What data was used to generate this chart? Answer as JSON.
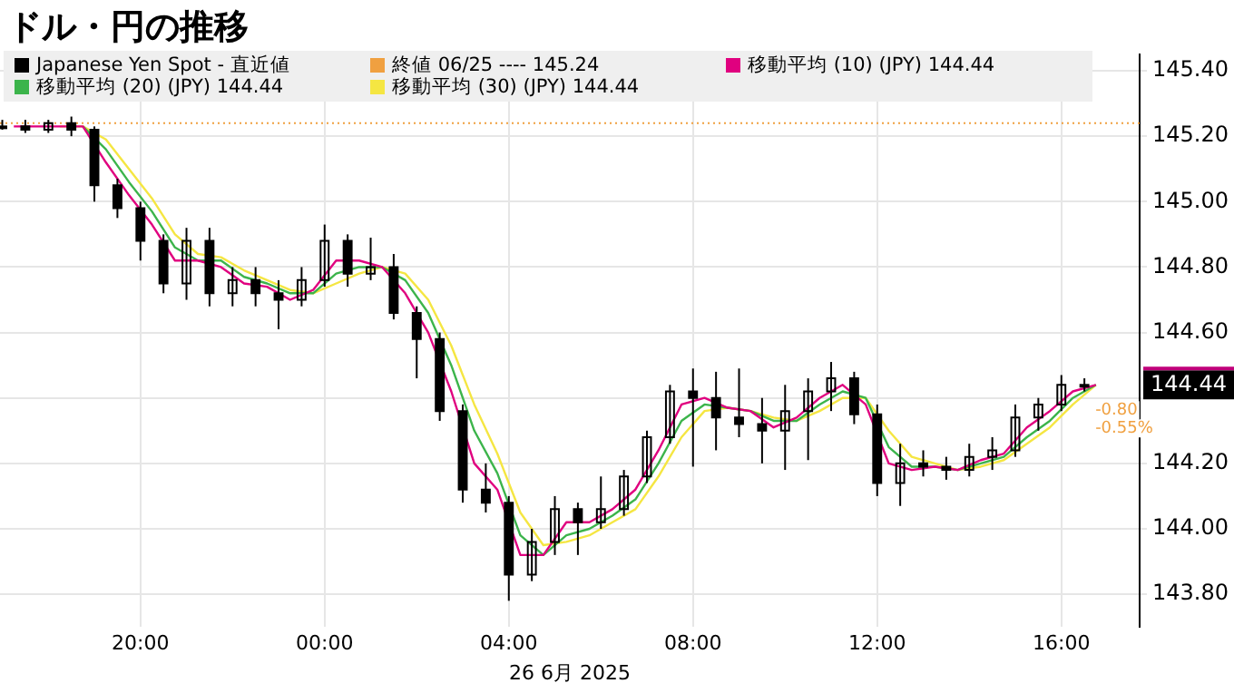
{
  "chart_data": {
    "type": "candlestick",
    "title": "ドル・円の推移",
    "xlabel": "26 6月 2025",
    "xlim": [
      "2025-06-25T16:57",
      "2025-06-26T17:42"
    ],
    "xticks": [
      {
        "value": "2025-06-25T20:00",
        "label": "20:00"
      },
      {
        "value": "2025-06-26T00:00",
        "label": "00:00"
      },
      {
        "value": "2025-06-26T04:00",
        "label": "04:00"
      },
      {
        "value": "2025-06-26T08:00",
        "label": "08:00"
      },
      {
        "value": "2025-06-26T12:00",
        "label": "12:00"
      },
      {
        "value": "2025-06-26T16:00",
        "label": "16:00"
      }
    ],
    "ylim": [
      143.7,
      145.45
    ],
    "yticks": [
      {
        "value": 143.8,
        "label": "143.80"
      },
      {
        "value": 144,
        "label": "144.00"
      },
      {
        "value": 144.2,
        "label": "144.20"
      },
      {
        "value": 144.4,
        "label": null
      },
      {
        "value": 144.6,
        "label": "144.60"
      },
      {
        "value": 144.8,
        "label": "144.80"
      },
      {
        "value": 145,
        "label": "145.00"
      },
      {
        "value": 145.2,
        "label": "145.20"
      },
      {
        "value": 145.4,
        "label": "145.40"
      }
    ],
    "grid": true,
    "legend": "top left",
    "x": [
      "2025-06-25T17:00",
      "2025-06-25T17:30",
      "2025-06-25T18:00",
      "2025-06-25T18:30",
      "2025-06-25T19:00",
      "2025-06-25T19:30",
      "2025-06-25T20:00",
      "2025-06-25T20:30",
      "2025-06-25T21:00",
      "2025-06-25T21:30",
      "2025-06-25T22:00",
      "2025-06-25T22:30",
      "2025-06-25T23:00",
      "2025-06-25T23:30",
      "2025-06-26T00:00",
      "2025-06-26T00:30",
      "2025-06-26T01:00",
      "2025-06-26T01:30",
      "2025-06-26T02:00",
      "2025-06-26T02:30",
      "2025-06-26T03:00",
      "2025-06-26T03:30",
      "2025-06-26T04:00",
      "2025-06-26T04:30",
      "2025-06-26T05:00",
      "2025-06-26T05:30",
      "2025-06-26T06:00",
      "2025-06-26T06:30",
      "2025-06-26T07:00",
      "2025-06-26T07:30",
      "2025-06-26T08:00",
      "2025-06-26T08:30",
      "2025-06-26T09:00",
      "2025-06-26T09:30",
      "2025-06-26T10:00",
      "2025-06-26T10:30",
      "2025-06-26T11:00",
      "2025-06-26T11:30",
      "2025-06-26T12:00",
      "2025-06-26T12:30",
      "2025-06-26T13:00",
      "2025-06-26T13:30",
      "2025-06-26T14:00",
      "2025-06-26T14:30",
      "2025-06-26T15:00",
      "2025-06-26T15:30",
      "2025-06-26T16:00",
      "2025-06-26T16:30"
    ],
    "series": [
      {
        "name": "Japanese Yen Spot - 直近値",
        "color": "#000000",
        "ohlc": [
          [
            145.23,
            145.25,
            145.22,
            145.23
          ],
          [
            145.23,
            145.25,
            145.21,
            145.22
          ],
          [
            145.22,
            145.25,
            145.21,
            145.24
          ],
          [
            145.24,
            145.26,
            145.2,
            145.22
          ],
          [
            145.22,
            145.23,
            145.0,
            145.05
          ],
          [
            145.05,
            145.07,
            144.95,
            144.98
          ],
          [
            144.98,
            145.0,
            144.82,
            144.88
          ],
          [
            144.88,
            144.9,
            144.72,
            144.75
          ],
          [
            144.75,
            144.92,
            144.7,
            144.88
          ],
          [
            144.88,
            144.92,
            144.68,
            144.72
          ],
          [
            144.72,
            144.8,
            144.68,
            144.76
          ],
          [
            144.76,
            144.8,
            144.68,
            144.72
          ],
          [
            144.72,
            144.76,
            144.61,
            144.7
          ],
          [
            144.7,
            144.8,
            144.68,
            144.76
          ],
          [
            144.76,
            144.93,
            144.74,
            144.88
          ],
          [
            144.88,
            144.9,
            144.74,
            144.78
          ],
          [
            144.78,
            144.89,
            144.76,
            144.8
          ],
          [
            144.8,
            144.84,
            144.64,
            144.66
          ],
          [
            144.66,
            144.68,
            144.46,
            144.58
          ],
          [
            144.58,
            144.6,
            144.33,
            144.36
          ],
          [
            144.36,
            144.38,
            144.08,
            144.12
          ],
          [
            144.12,
            144.2,
            144.05,
            144.08
          ],
          [
            144.08,
            144.1,
            143.78,
            143.86
          ],
          [
            143.86,
            144.0,
            143.84,
            143.96
          ],
          [
            143.96,
            144.1,
            143.92,
            144.06
          ],
          [
            144.06,
            144.08,
            143.92,
            144.02
          ],
          [
            144.02,
            144.16,
            144.0,
            144.06
          ],
          [
            144.06,
            144.18,
            144.04,
            144.16
          ],
          [
            144.16,
            144.3,
            144.14,
            144.28
          ],
          [
            144.28,
            144.44,
            144.26,
            144.42
          ],
          [
            144.42,
            144.49,
            144.19,
            144.4
          ],
          [
            144.4,
            144.48,
            144.24,
            144.34
          ],
          [
            144.34,
            144.49,
            144.28,
            144.32
          ],
          [
            144.32,
            144.4,
            144.2,
            144.3
          ],
          [
            144.3,
            144.44,
            144.18,
            144.36
          ],
          [
            144.36,
            144.46,
            144.21,
            144.42
          ],
          [
            144.42,
            144.51,
            144.36,
            144.46
          ],
          [
            144.46,
            144.48,
            144.32,
            144.35
          ],
          [
            144.35,
            144.38,
            144.1,
            144.14
          ],
          [
            144.14,
            144.26,
            144.07,
            144.2
          ],
          [
            144.2,
            144.24,
            144.16,
            144.19
          ],
          [
            144.19,
            144.22,
            144.15,
            144.18
          ],
          [
            144.18,
            144.26,
            144.16,
            144.22
          ],
          [
            144.22,
            144.28,
            144.18,
            144.24
          ],
          [
            144.24,
            144.38,
            144.22,
            144.34
          ],
          [
            144.34,
            144.4,
            144.3,
            144.38
          ],
          [
            144.38,
            144.47,
            144.36,
            144.44
          ],
          [
            144.44,
            144.46,
            144.42,
            144.44
          ]
        ]
      },
      {
        "name": "移動平均 (10) (JPY) 144.44",
        "type": "line",
        "color": "#e0007f",
        "x": [
          "2025-06-25T17:15",
          "2025-06-25T17:45",
          "2025-06-25T18:15",
          "2025-06-25T18:45",
          "2025-06-25T19:15",
          "2025-06-25T19:45",
          "2025-06-25T20:15",
          "2025-06-25T20:45",
          "2025-06-25T21:15",
          "2025-06-25T21:45",
          "2025-06-25T22:15",
          "2025-06-25T22:45",
          "2025-06-25T23:15",
          "2025-06-25T23:45",
          "2025-06-26T00:15",
          "2025-06-26T00:45",
          "2025-06-26T01:15",
          "2025-06-26T01:45",
          "2025-06-26T02:15",
          "2025-06-26T02:45",
          "2025-06-26T03:15",
          "2025-06-26T03:45",
          "2025-06-26T04:15",
          "2025-06-26T04:45",
          "2025-06-26T05:15",
          "2025-06-26T05:45",
          "2025-06-26T06:15",
          "2025-06-26T06:45",
          "2025-06-26T07:15",
          "2025-06-26T07:45",
          "2025-06-26T08:15",
          "2025-06-26T08:45",
          "2025-06-26T09:15",
          "2025-06-26T09:45",
          "2025-06-26T10:15",
          "2025-06-26T10:45",
          "2025-06-26T11:15",
          "2025-06-26T11:45",
          "2025-06-26T12:15",
          "2025-06-26T12:45",
          "2025-06-26T13:15",
          "2025-06-26T13:45",
          "2025-06-26T14:15",
          "2025-06-26T14:45",
          "2025-06-26T15:15",
          "2025-06-26T15:45",
          "2025-06-26T16:15",
          "2025-06-26T16:45"
        ],
        "values": [
          145.23,
          145.23,
          145.23,
          145.23,
          145.12,
          145.02,
          144.93,
          144.82,
          144.82,
          144.8,
          144.75,
          144.74,
          144.7,
          144.73,
          144.82,
          144.82,
          144.8,
          144.72,
          144.6,
          144.42,
          144.2,
          144.12,
          143.92,
          143.92,
          144.02,
          144.02,
          144.06,
          144.12,
          144.24,
          144.38,
          144.4,
          144.37,
          144.36,
          144.31,
          144.34,
          144.4,
          144.44,
          144.38,
          144.2,
          144.18,
          144.19,
          144.18,
          144.21,
          144.23,
          144.31,
          144.36,
          144.42,
          144.44
        ]
      },
      {
        "name": "移動平均 (20) (JPY) 144.44",
        "type": "line",
        "color": "#3cb44b",
        "x": [
          "2025-06-25T18:45",
          "2025-06-25T19:15",
          "2025-06-25T19:45",
          "2025-06-25T20:15",
          "2025-06-25T20:45",
          "2025-06-25T21:15",
          "2025-06-25T21:45",
          "2025-06-25T22:15",
          "2025-06-25T22:45",
          "2025-06-25T23:15",
          "2025-06-25T23:45",
          "2025-06-26T00:15",
          "2025-06-26T00:45",
          "2025-06-26T01:15",
          "2025-06-26T01:45",
          "2025-06-26T02:15",
          "2025-06-26T02:45",
          "2025-06-26T03:15",
          "2025-06-26T03:45",
          "2025-06-26T04:15",
          "2025-06-26T04:45",
          "2025-06-26T05:15",
          "2025-06-26T05:45",
          "2025-06-26T06:15",
          "2025-06-26T06:45",
          "2025-06-26T07:15",
          "2025-06-26T07:45",
          "2025-06-26T08:15",
          "2025-06-26T08:45",
          "2025-06-26T09:15",
          "2025-06-26T09:45",
          "2025-06-26T10:15",
          "2025-06-26T10:45",
          "2025-06-26T11:15",
          "2025-06-26T11:45",
          "2025-06-26T12:15",
          "2025-06-26T12:45",
          "2025-06-26T13:15",
          "2025-06-26T13:45",
          "2025-06-26T14:15",
          "2025-06-26T14:45",
          "2025-06-26T15:15",
          "2025-06-26T15:45",
          "2025-06-26T16:15",
          "2025-06-26T16:45"
        ],
        "values": [
          145.23,
          145.16,
          145.06,
          144.97,
          144.86,
          144.82,
          144.82,
          144.77,
          144.75,
          144.72,
          144.72,
          144.78,
          144.8,
          144.8,
          144.76,
          144.66,
          144.5,
          144.3,
          144.17,
          143.98,
          143.92,
          143.98,
          144.0,
          144.04,
          144.09,
          144.2,
          144.33,
          144.38,
          144.37,
          144.36,
          144.33,
          144.33,
          144.38,
          144.42,
          144.4,
          144.25,
          144.19,
          144.19,
          144.18,
          144.2,
          144.22,
          144.28,
          144.33,
          144.4,
          144.44
        ]
      },
      {
        "name": "移動平均 (30) (JPY) 144.44",
        "type": "line",
        "color": "#f5e642",
        "x": [
          "2025-06-25T18:15",
          "2025-06-25T18:45",
          "2025-06-25T19:15",
          "2025-06-25T19:45",
          "2025-06-25T20:15",
          "2025-06-25T20:45",
          "2025-06-25T21:15",
          "2025-06-25T21:45",
          "2025-06-25T22:15",
          "2025-06-25T22:45",
          "2025-06-25T23:15",
          "2025-06-25T23:45",
          "2025-06-26T00:15",
          "2025-06-26T00:45",
          "2025-06-26T01:15",
          "2025-06-26T01:45",
          "2025-06-26T02:15",
          "2025-06-26T02:45",
          "2025-06-26T03:15",
          "2025-06-26T03:45",
          "2025-06-26T04:15",
          "2025-06-26T04:45",
          "2025-06-26T05:15",
          "2025-06-26T05:45",
          "2025-06-26T06:15",
          "2025-06-26T06:45",
          "2025-06-26T07:15",
          "2025-06-26T07:45",
          "2025-06-26T08:15",
          "2025-06-26T08:45",
          "2025-06-26T09:15",
          "2025-06-26T09:45",
          "2025-06-26T10:15",
          "2025-06-26T10:45",
          "2025-06-26T11:15",
          "2025-06-26T11:45",
          "2025-06-26T12:15",
          "2025-06-26T12:45",
          "2025-06-26T13:15",
          "2025-06-26T13:45",
          "2025-06-26T14:15",
          "2025-06-26T14:45",
          "2025-06-26T15:15",
          "2025-06-26T15:45",
          "2025-06-26T16:15",
          "2025-06-26T16:45"
        ],
        "values": [
          145.23,
          145.23,
          145.19,
          145.1,
          145.01,
          144.9,
          144.84,
          144.83,
          144.79,
          144.76,
          144.73,
          144.72,
          144.75,
          144.78,
          144.8,
          144.78,
          144.7,
          144.56,
          144.38,
          144.23,
          144.05,
          143.95,
          143.96,
          143.98,
          144.02,
          144.06,
          144.16,
          144.28,
          144.36,
          144.37,
          144.36,
          144.34,
          144.33,
          144.36,
          144.4,
          144.4,
          144.3,
          144.22,
          144.2,
          144.18,
          144.19,
          144.21,
          144.26,
          144.31,
          144.38,
          144.44
        ]
      }
    ],
    "ref_lines": [
      {
        "axis": "y",
        "value": 145.24,
        "label": "終値 06/25 ---- 145.24",
        "color": "#f0a040",
        "line_style": "dotted"
      }
    ],
    "annotations": [
      "144.44",
      "-0.80",
      "-0.55%"
    ]
  }
}
